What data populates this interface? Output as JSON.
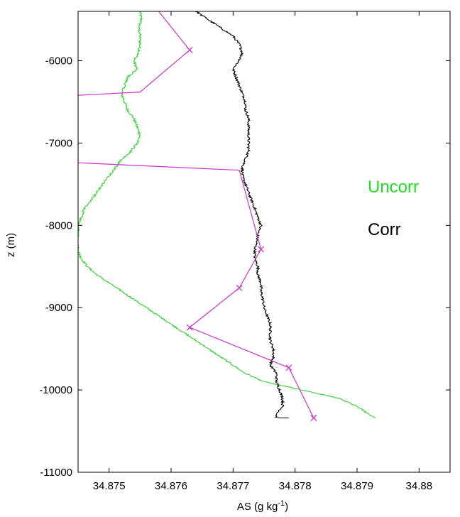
{
  "chart_data": {
    "type": "line",
    "xlabel": "AS (g kg",
    "xlabel_sup": "-1",
    "xlabel_end": ")",
    "ylabel": "z (m)",
    "xlim": [
      34.8745,
      34.8805
    ],
    "ylim": [
      -11000,
      -5400
    ],
    "x_ticks": [
      34.875,
      34.876,
      34.877,
      34.878,
      34.879,
      34.88
    ],
    "x_tick_labels": [
      "34.875",
      "34.876",
      "34.877",
      "34.878",
      "34.879",
      "34.88"
    ],
    "y_ticks": [
      -6000,
      -7000,
      -8000,
      -9000,
      -10000,
      -11000
    ],
    "y_tick_labels": [
      "-6000",
      "-7000",
      "-8000",
      "-9000",
      "-10000",
      "-11000"
    ],
    "grid": false,
    "legend_position": "right",
    "legend": [
      {
        "label": "Uncorr",
        "color": "#22dd22"
      },
      {
        "label": "Corr",
        "color": "#000000"
      }
    ],
    "series": [
      {
        "color": "#2ed12e",
        "noise": 4e-05,
        "x": [
          34.8755,
          34.87552,
          34.87548,
          34.8755,
          34.8755,
          34.87548,
          34.8754,
          34.87545,
          34.8753,
          34.87525,
          34.8752,
          34.87525,
          34.8753,
          34.8754,
          34.87545,
          34.8755,
          34.87545,
          34.87535,
          34.8752,
          34.8751,
          34.875,
          34.8749,
          34.8748,
          34.8747,
          34.8746,
          34.87455,
          34.8745,
          34.8745,
          34.87448,
          34.8745,
          34.87455,
          34.87465,
          34.8748,
          34.875,
          34.8752,
          34.8754,
          34.8756,
          34.8758,
          34.876,
          34.8762,
          34.8764,
          34.8766,
          34.8768,
          34.877,
          34.8772,
          34.8775,
          34.8778,
          34.8781,
          34.8784,
          34.8787,
          34.879,
          34.8792,
          34.8793
        ],
        "y": [
          -5400,
          -5500,
          -5600,
          -5700,
          -5800,
          -5900,
          -6000,
          -6100,
          -6200,
          -6300,
          -6400,
          -6500,
          -6600,
          -6700,
          -6800,
          -6900,
          -7000,
          -7100,
          -7200,
          -7300,
          -7400,
          -7500,
          -7600,
          -7700,
          -7800,
          -7900,
          -8000,
          -8100,
          -8200,
          -8300,
          -8400,
          -8500,
          -8600,
          -8700,
          -8800,
          -8900,
          -9000,
          -9100,
          -9200,
          -9300,
          -9400,
          -9500,
          -9600,
          -9700,
          -9800,
          -9900,
          -9950,
          -10000,
          -10050,
          -10100,
          -10200,
          -10300,
          -10340
        ]
      },
      {
        "color": "#000000",
        "noise": 4e-05,
        "x": [
          34.8764,
          34.8766,
          34.8768,
          34.877,
          34.8771,
          34.87715,
          34.8771,
          34.877,
          34.87705,
          34.8771,
          34.87715,
          34.8772,
          34.8772,
          34.87725,
          34.87725,
          34.87725,
          34.87725,
          34.87725,
          34.8772,
          34.87715,
          34.87715,
          34.8772,
          34.87725,
          34.8773,
          34.87735,
          34.8774,
          34.87745,
          34.8774,
          34.87738,
          34.87735,
          34.87735,
          34.8774,
          34.8774,
          34.87745,
          34.87745,
          34.87748,
          34.8775,
          34.87755,
          34.8776,
          34.8776,
          34.8776,
          34.87765,
          34.87765,
          34.8776,
          34.8777,
          34.8777,
          34.87775,
          34.8778,
          34.8778,
          34.8777,
          34.8777,
          34.87775,
          34.8779
        ],
        "y": [
          -5400,
          -5500,
          -5600,
          -5700,
          -5800,
          -5900,
          -6000,
          -6100,
          -6200,
          -6300,
          -6400,
          -6500,
          -6600,
          -6700,
          -6800,
          -6900,
          -7000,
          -7100,
          -7200,
          -7300,
          -7400,
          -7500,
          -7600,
          -7700,
          -7800,
          -7900,
          -8000,
          -8100,
          -8200,
          -8300,
          -8400,
          -8500,
          -8600,
          -8700,
          -8800,
          -8900,
          -9000,
          -9100,
          -9200,
          -9300,
          -9400,
          -9500,
          -9600,
          -9700,
          -9800,
          -9900,
          -10000,
          -10100,
          -10200,
          -10300,
          -10330,
          -10340,
          -10340
        ]
      },
      {
        "color": "#cc33cc",
        "marker": "x",
        "x": [
          34.8758,
          34.8763,
          34.8755,
          34.8745,
          34.8745,
          34.8771,
          34.87745,
          34.8771,
          34.8763,
          34.8779,
          34.8783
        ],
        "y": [
          -5400,
          -5870,
          -6380,
          -6420,
          -7240,
          -7330,
          -8290,
          -8760,
          -9240,
          -9730,
          -10340
        ],
        "x_marker_indices": [
          1,
          6,
          7,
          8,
          9,
          10
        ],
        "clip_left": true
      }
    ]
  }
}
